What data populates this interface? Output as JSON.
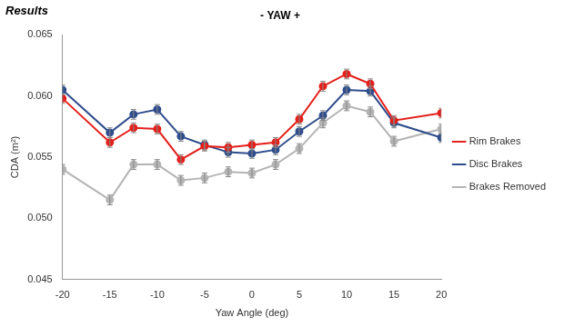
{
  "chart_data": {
    "type": "line",
    "heading": "Results",
    "title": "- YAW +",
    "x_label": "Yaw Angle (deg)",
    "y_label": "CDA (m²)",
    "x": [
      -20,
      -15,
      -12.5,
      -10,
      -7.5,
      -5,
      -2.5,
      0,
      2.5,
      5,
      7.5,
      10,
      12.5,
      15,
      20
    ],
    "series": [
      {
        "name": "Rim Brakes",
        "color": "#e3201b",
        "marker": "circle",
        "values": [
          0.0598,
          0.0562,
          0.0574,
          0.0573,
          0.0548,
          0.0559,
          0.0558,
          0.056,
          0.0562,
          0.0581,
          0.0608,
          0.0618,
          0.061,
          0.058,
          0.0586
        ],
        "errors": [
          0.0004,
          0.0004,
          0.0004,
          0.0004,
          0.0004,
          0.0004,
          0.0004,
          0.0004,
          0.0004,
          0.0004,
          0.0004,
          0.0004,
          0.0004,
          0.0004,
          0.0004
        ]
      },
      {
        "name": "Disc Brakes",
        "color": "#2f4d8c",
        "marker": "circle",
        "values": [
          0.0605,
          0.057,
          0.0585,
          0.0589,
          0.0567,
          0.056,
          0.0554,
          0.0553,
          0.0556,
          0.0571,
          0.0584,
          0.0605,
          0.0604,
          0.0578,
          0.0566
        ],
        "errors": [
          0.0004,
          0.0004,
          0.0004,
          0.0004,
          0.0004,
          0.0004,
          0.0004,
          0.0004,
          0.0004,
          0.0004,
          0.0004,
          0.0004,
          0.0004,
          0.0004,
          0.0004
        ]
      },
      {
        "name": "Brakes Removed",
        "color": "#b4b4b4",
        "marker": "circle",
        "values": [
          0.054,
          0.0515,
          0.0544,
          0.0544,
          0.0531,
          0.0533,
          0.0538,
          0.0537,
          0.0544,
          0.0557,
          0.0578,
          0.0592,
          0.0587,
          0.0563,
          0.0573
        ],
        "errors": [
          0.0004,
          0.0004,
          0.0004,
          0.0004,
          0.0004,
          0.0004,
          0.0004,
          0.0004,
          0.0004,
          0.0004,
          0.0004,
          0.0004,
          0.0004,
          0.0004,
          0.0004
        ]
      }
    ],
    "xlim": [
      -20,
      20
    ],
    "xticks": [
      -20,
      -15,
      -10,
      -5,
      0,
      5,
      10,
      15,
      20
    ],
    "ylim": [
      0.045,
      0.065
    ],
    "yticks": [
      0.045,
      {
        "value": 0.05,
        "label": "0.050"
      },
      0.055,
      {
        "value": 0.06,
        "label": "0.060"
      },
      0.065
    ],
    "grid": false,
    "legend": "right"
  }
}
